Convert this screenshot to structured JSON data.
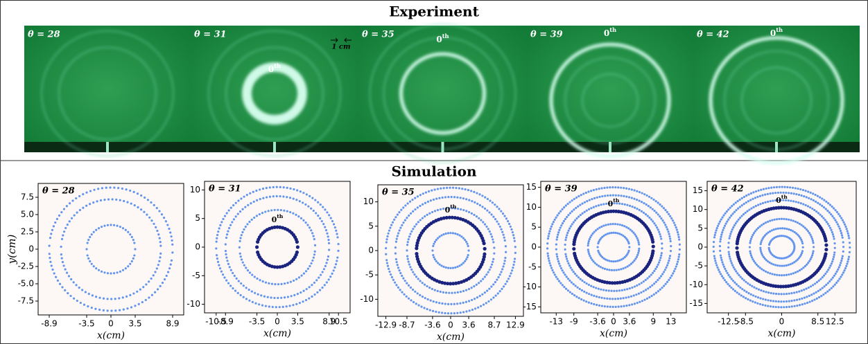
{
  "experiment": {
    "title": "Experiment",
    "scale_label": "1 cm",
    "panels": [
      {
        "label": "θ = 28"
      },
      {
        "label": "θ = 31",
        "zeroth": {
          "base": "0",
          "sup": "th"
        }
      },
      {
        "label": "θ = 35",
        "zeroth": {
          "base": "0",
          "sup": "th"
        }
      },
      {
        "label": "θ = 39",
        "zeroth": {
          "base": "0",
          "sup": "th"
        }
      },
      {
        "label": "θ = 42",
        "zeroth": {
          "base": "0",
          "sup": "th"
        }
      }
    ]
  },
  "simulation": {
    "title": "Simulation",
    "x_label": "x(cm)",
    "y_label": "y(cm)",
    "panels": [
      {
        "type": "scatter",
        "label": "θ = 28",
        "xlim": [
          -10.5,
          10.5
        ],
        "ylim": [
          -9.5,
          9.5
        ],
        "xticks": [
          -8.9,
          -3.5,
          0,
          3.5,
          8.9
        ],
        "yticks": [
          7.5,
          {
            "value": 5,
            "label": "5.0"
          },
          2.5,
          0,
          -2.5,
          {
            "value": -5,
            "label": "-5.0"
          },
          -7.5
        ],
        "rings": [
          {
            "r": 3.5,
            "color": "#6495ed"
          },
          {
            "r": 7.2,
            "color": "#6495ed"
          },
          {
            "r": 8.9,
            "color": "#6495ed"
          }
        ]
      },
      {
        "type": "scatter",
        "label": "θ = 31",
        "zeroth": {
          "base": "0",
          "sup": "th"
        },
        "xlim": [
          -12.5,
          12.5
        ],
        "ylim": [
          -11.5,
          11.5
        ],
        "xticks": [
          -10.5,
          -8.9,
          -3.5,
          0,
          3.5,
          8.9,
          10.5
        ],
        "yticks": [
          10,
          5,
          0,
          -5,
          -10
        ],
        "rings": [
          {
            "r": 3.5,
            "color": "#1a237e"
          },
          {
            "r": 6.5,
            "color": "#6495ed"
          },
          {
            "r": 8.9,
            "color": "#6495ed"
          },
          {
            "r": 10.5,
            "color": "#6495ed"
          }
        ]
      },
      {
        "type": "scatter",
        "label": "θ = 35",
        "zeroth": {
          "base": "0",
          "sup": "th"
        },
        "xlim": [
          -14.5,
          14.5
        ],
        "ylim": [
          -13.5,
          13.5
        ],
        "xticks": [
          -12.9,
          -8.7,
          -3.6,
          0,
          3.6,
          8.7,
          12.9
        ],
        "yticks": [
          10,
          5,
          0,
          -5,
          -10
        ],
        "rings": [
          {
            "r": 3.6,
            "color": "#6495ed"
          },
          {
            "r": 6.8,
            "color": "#1a237e"
          },
          {
            "r": 8.7,
            "color": "#6495ed"
          },
          {
            "r": 11,
            "color": "#6495ed"
          },
          {
            "r": 12.9,
            "color": "#6495ed"
          }
        ]
      },
      {
        "type": "scatter",
        "label": "θ = 39",
        "zeroth": {
          "base": "0",
          "sup": "th"
        },
        "xlim": [
          -16.5,
          16.5
        ],
        "ylim": [
          -16.5,
          16.5
        ],
        "xticks": [
          -13,
          -9,
          -3.6,
          0,
          3.6,
          9,
          13
        ],
        "yticks": [
          15,
          10,
          5,
          0,
          -5,
          -10,
          -15
        ],
        "rings": [
          {
            "r": 3.6,
            "color": "#6495ed"
          },
          {
            "r": 5.8,
            "color": "#6495ed"
          },
          {
            "r": 9,
            "color": "#1a237e"
          },
          {
            "r": 11,
            "color": "#6495ed"
          },
          {
            "r": 13,
            "color": "#6495ed"
          },
          {
            "r": 15,
            "color": "#6495ed"
          }
        ]
      },
      {
        "type": "scatter",
        "label": "θ = 42",
        "zeroth": {
          "base": "0",
          "sup": "th"
        },
        "xlim": [
          -17.5,
          17.5
        ],
        "ylim": [
          -17.5,
          17.5
        ],
        "xticks": [
          -12.5,
          -8.5,
          0,
          8.5,
          12.5
        ],
        "yticks": [
          15,
          10,
          5,
          0,
          -5,
          -10,
          -15
        ],
        "rings": [
          {
            "r": 3,
            "color": "#6495ed"
          },
          {
            "r": 5,
            "color": "#6495ed"
          },
          {
            "r": 7.5,
            "color": "#6495ed"
          },
          {
            "r": 10.5,
            "color": "#1a237e"
          },
          {
            "r": 12.5,
            "color": "#6495ed"
          },
          {
            "r": 14.5,
            "color": "#6495ed"
          },
          {
            "r": 16,
            "color": "#6495ed"
          }
        ]
      }
    ]
  }
}
